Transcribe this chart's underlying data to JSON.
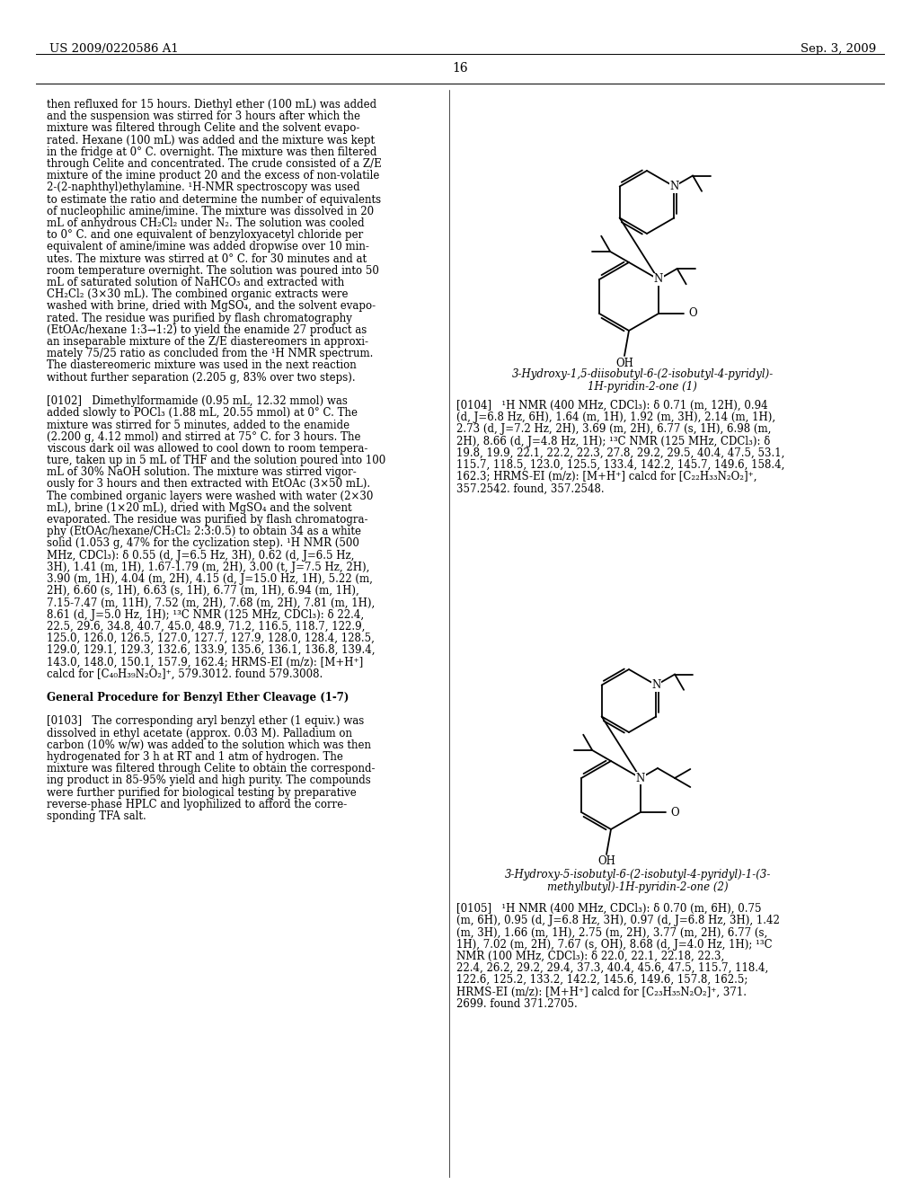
{
  "page_header_left": "US 2009/0220586 A1",
  "page_header_right": "Sep. 3, 2009",
  "page_number": "16",
  "background_color": "#ffffff",
  "text_color": "#000000",
  "left_column_text": [
    "then refluxed for 15 hours. Diethyl ether (100 mL) was added",
    "and the suspension was stirred for 3 hours after which the",
    "mixture was filtered through Celite and the solvent evapo-",
    "rated. Hexane (100 mL) was added and the mixture was kept",
    "in the fridge at 0° C. overnight. The mixture was then filtered",
    "through Celite and concentrated. The crude consisted of a Z/E",
    "mixture of the imine product 20 and the excess of non-volatile",
    "2-(2-naphthyl)ethylamine. ¹H-NMR spectroscopy was used",
    "to estimate the ratio and determine the number of equivalents",
    "of nucleophilic amine/imine. The mixture was dissolved in 20",
    "mL of anhydrous CH₂Cl₂ under N₂. The solution was cooled",
    "to 0° C. and one equivalent of benzyloxyacetyl chloride per",
    "equivalent of amine/imine was added dropwise over 10 min-",
    "utes. The mixture was stirred at 0° C. for 30 minutes and at",
    "room temperature overnight. The solution was poured into 50",
    "mL of saturated solution of NaHCO₃ and extracted with",
    "CH₂Cl₂ (3×30 mL). The combined organic extracts were",
    "washed with brine, dried with MgSO₄, and the solvent evapo-",
    "rated. The residue was purified by flash chromatography",
    "(EtOAc/hexane 1:3→1:2) to yield the enamide 27 product as",
    "an inseparable mixture of the Z/E diastereomers in approxi-",
    "mately 75/25 ratio as concluded from the ¹H NMR spectrum.",
    "The diastereomeric mixture was used in the next reaction",
    "without further separation (2.205 g, 83% over two steps).",
    "",
    "[0102]   Dimethylformamide (0.95 mL, 12.32 mmol) was",
    "added slowly to POCl₃ (1.88 mL, 20.55 mmol) at 0° C. The",
    "mixture was stirred for 5 minutes, added to the enamide",
    "(2.200 g, 4.12 mmol) and stirred at 75° C. for 3 hours. The",
    "viscous dark oil was allowed to cool down to room tempera-",
    "ture, taken up in 5 mL of THF and the solution poured into 100",
    "mL of 30% NaOH solution. The mixture was stirred vigor-",
    "ously for 3 hours and then extracted with EtOAc (3×50 mL).",
    "The combined organic layers were washed with water (2×30",
    "mL), brine (1×20 mL), dried with MgSO₄ and the solvent",
    "evaporated. The residue was purified by flash chromatogra-",
    "phy (EtOAc/hexane/CH₂Cl₂ 2:3:0.5) to obtain 34 as a white",
    "solid (1.053 g, 47% for the cyclization step). ¹H NMR (500",
    "MHz, CDCl₃): δ 0.55 (d, J=6.5 Hz, 3H), 0.62 (d, J=6.5 Hz,",
    "3H), 1.41 (m, 1H), 1.67-1.79 (m, 2H), 3.00 (t, J=7.5 Hz, 2H),",
    "3.90 (m, 1H), 4.04 (m, 2H), 4.15 (d, J=15.0 Hz, 1H), 5.22 (m,",
    "2H), 6.60 (s, 1H), 6.63 (s, 1H), 6.77 (m, 1H), 6.94 (m, 1H),",
    "7.15-7.47 (m, 11H), 7.52 (m, 2H), 7.68 (m, 2H), 7.81 (m, 1H),",
    "8.61 (d, J=5.0 Hz, 1H); ¹³C NMR (125 MHz, CDCl₃): δ 22.4,",
    "22.5, 29.6, 34.8, 40.7, 45.0, 48.9, 71.2, 116.5, 118.7, 122.9,",
    "125.0, 126.0, 126.5, 127.0, 127.7, 127.9, 128.0, 128.4, 128.5,",
    "129.0, 129.1, 129.3, 132.6, 133.9, 135.6, 136.1, 136.8, 139.4,",
    "143.0, 148.0, 150.1, 157.9, 162.4; HRMS-EI (m/z): [M+H⁺]",
    "calcd for [C₄₀H₃₉N₂O₂]⁺, 579.3012. found 579.3008.",
    "",
    "General Procedure for Benzyl Ether Cleavage (1-7)",
    "",
    "[0103]   The corresponding aryl benzyl ether (1 equiv.) was",
    "dissolved in ethyl acetate (approx. 0.03 M). Palladium on",
    "carbon (10% w/w) was added to the solution which was then",
    "hydrogenated for 3 h at RT and 1 atm of hydrogen. The",
    "mixture was filtered through Celite to obtain the correspond-",
    "ing product in 85-95% yield and high purity. The compounds",
    "were further purified for biological testing by preparative",
    "reverse-phase HPLC and lyophilized to afford the corre-",
    "sponding TFA salt."
  ],
  "right_top_text": [
    "[0104]   ¹H NMR (400 MHz, CDCl₃): δ 0.71 (m, 12H), 0.94",
    "(d, J=6.8 Hz, 6H), 1.64 (m, 1H), 1.92 (m, 3H), 2.14 (m, 1H),",
    "2.73 (d, J=7.2 Hz, 2H), 3.69 (m, 2H), 6.77 (s, 1H), 6.98 (m,",
    "2H), 8.66 (d, J=4.8 Hz, 1H); ¹³C NMR (125 MHz, CDCl₃): δ",
    "19.8, 19.9, 22.1, 22.2, 22.3, 27.8, 29.2, 29.5, 40.4, 47.5, 53.1,",
    "115.7, 118.5, 123.0, 125.5, 133.4, 142.2, 145.7, 149.6, 158.4,",
    "162.3; HRMS-EI (m/z): [M+H⁺] calcd for [C₂₂H₃₃N₂O₂]⁺,",
    "357.2542. found, 357.2548."
  ],
  "right_bottom_text": [
    "[0105]   ¹H NMR (400 MHz, CDCl₃): δ 0.70 (m, 6H), 0.75",
    "(m, 6H), 0.95 (d, J=6.8 Hz, 3H), 0.97 (d, J=6.8 Hz, 3H), 1.42",
    "(m, 3H), 1.66 (m, 1H), 2.75 (m, 2H), 3.77 (m, 2H), 6.77 (s,",
    "1H), 7.02 (m, 2H), 7.67 (s, OH), 8.68 (d, J=4.0 Hz, 1H); ¹³C",
    "NMR (100 MHz, CDCl₃): δ 22.0, 22.1, 22.18, 22.3,",
    "22.4, 26.2, 29.2, 29.4, 37.3, 40.4, 45.6, 47.5, 115.7, 118.4,",
    "122.6, 125.2, 133.2, 142.2, 145.6, 149.6, 157.8, 162.5;",
    "HRMS-EI (m/z): [M+H⁺] calcd for [C₂₃H₃₅N₂O₂]⁺, 371.",
    "2699. found 371.2705."
  ],
  "caption1a": "3-Hydroxy-1,5-diisobutyl-6-(2-isobutyl-4-pyridyl)-",
  "caption1b": "1H-pyridin-2-one (1)",
  "caption2a": "3-Hydroxy-5-isobutyl-6-(2-isobutyl-4-pyridyl)-1-(3-",
  "caption2b": "methylbutyl)-1H-pyridin-2-one (2)"
}
